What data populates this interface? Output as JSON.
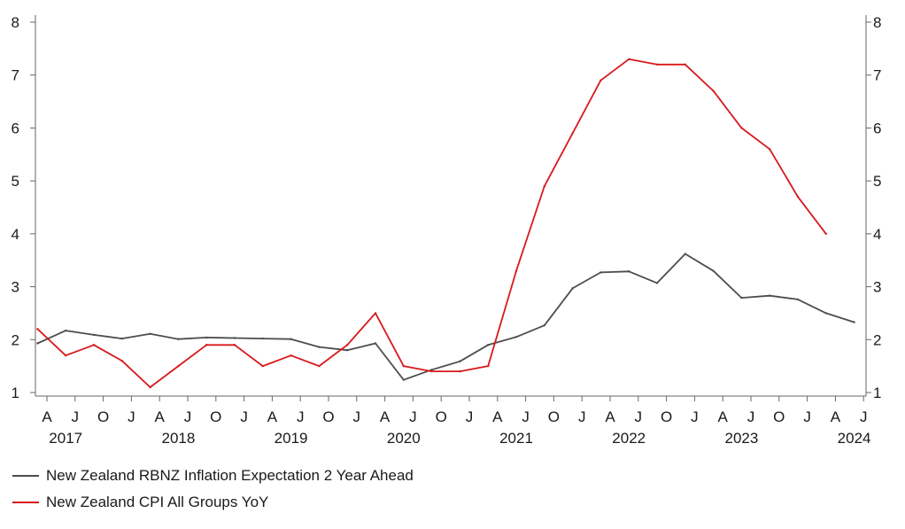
{
  "chart_data": {
    "type": "line",
    "title": "",
    "xlabel": "",
    "ylabel": "",
    "ylim": [
      1,
      8
    ],
    "yticks": [
      1,
      2,
      3,
      4,
      5,
      6,
      7,
      8
    ],
    "y_right_axis": true,
    "grid": false,
    "legend_position": "bottom-left",
    "x_month_ticks": [
      "A",
      "J",
      "O",
      "J",
      "A",
      "J",
      "O",
      "J",
      "A",
      "J",
      "O",
      "J",
      "A",
      "J",
      "O",
      "J",
      "A",
      "J",
      "O",
      "J",
      "A",
      "J",
      "O",
      "J",
      "A",
      "J",
      "O",
      "J",
      "A",
      "J"
    ],
    "year_labels": [
      "2017",
      "2018",
      "2019",
      "2020",
      "2021",
      "2022",
      "2023",
      "2024"
    ],
    "series": [
      {
        "name": "New Zealand RBNZ Inflation Expectation 2 Year Ahead",
        "color": "#4d4d4d",
        "x": [
          "2017-03",
          "2017-06",
          "2017-09",
          "2017-12",
          "2018-03",
          "2018-06",
          "2018-09",
          "2018-12",
          "2019-03",
          "2019-06",
          "2019-09",
          "2019-12",
          "2020-03",
          "2020-06",
          "2020-09",
          "2020-12",
          "2021-03",
          "2021-06",
          "2021-09",
          "2021-12",
          "2022-03",
          "2022-06",
          "2022-09",
          "2022-12",
          "2023-03",
          "2023-06",
          "2023-09",
          "2023-12",
          "2024-03",
          "2024-06"
        ],
        "values": [
          1.93,
          2.17,
          2.09,
          2.02,
          2.11,
          2.01,
          2.04,
          2.03,
          2.02,
          2.01,
          1.86,
          1.8,
          1.93,
          1.24,
          1.43,
          1.59,
          1.9,
          2.05,
          2.27,
          2.97,
          3.27,
          3.29,
          3.07,
          3.62,
          3.3,
          2.79,
          2.83,
          2.76,
          2.5,
          2.33
        ]
      },
      {
        "name": "New Zealand CPI All Groups YoY",
        "color": "#d7191c",
        "x": [
          "2017-03",
          "2017-06",
          "2017-09",
          "2017-12",
          "2018-03",
          "2018-06",
          "2018-09",
          "2018-12",
          "2019-03",
          "2019-06",
          "2019-09",
          "2019-12",
          "2020-03",
          "2020-06",
          "2020-09",
          "2020-12",
          "2021-03",
          "2021-06",
          "2021-09",
          "2021-12",
          "2022-03",
          "2022-06",
          "2022-09",
          "2022-12",
          "2023-03",
          "2023-06",
          "2023-09",
          "2023-12",
          "2024-03"
        ],
        "values": [
          2.2,
          1.7,
          1.9,
          1.6,
          1.1,
          1.5,
          1.9,
          1.9,
          1.5,
          1.7,
          1.5,
          1.9,
          2.5,
          1.5,
          1.4,
          1.4,
          1.5,
          3.3,
          4.9,
          5.9,
          6.9,
          7.3,
          7.2,
          7.2,
          6.7,
          6.0,
          5.6,
          4.7,
          4.0
        ]
      }
    ]
  }
}
